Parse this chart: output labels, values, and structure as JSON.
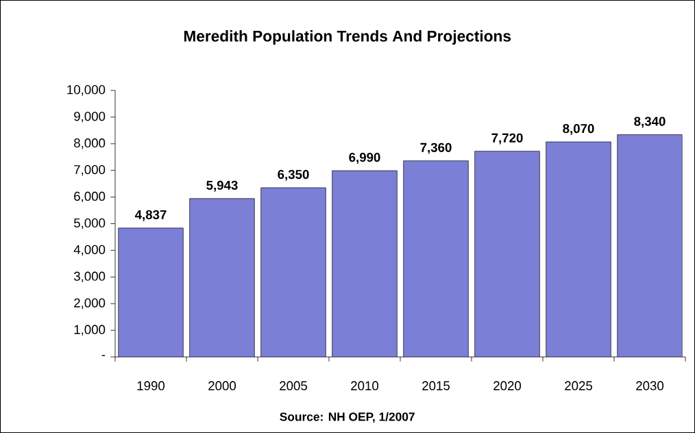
{
  "chart_data": {
    "type": "bar",
    "title": "Meredith Population Trends And Projections",
    "categories": [
      "1990",
      "2000",
      "2005",
      "2010",
      "2015",
      "2020",
      "2025",
      "2030"
    ],
    "values": [
      4837,
      5943,
      6350,
      6990,
      7360,
      7720,
      8070,
      8340
    ],
    "value_labels": [
      "4,837",
      "5,943",
      "6,350",
      "6,990",
      "7,360",
      "7,720",
      "8,070",
      "8,340"
    ],
    "color": "#7c7fd6",
    "ylim": [
      0,
      10000
    ],
    "yticks": [
      {
        "value": 0,
        "label": "-"
      },
      {
        "value": 1000,
        "label": "1,000"
      },
      {
        "value": 2000,
        "label": "2,000"
      },
      {
        "value": 3000,
        "label": "3,000"
      },
      {
        "value": 4000,
        "label": "4,000"
      },
      {
        "value": 5000,
        "label": "5,000"
      },
      {
        "value": 6000,
        "label": "6,000"
      },
      {
        "value": 7000,
        "label": "7,000"
      },
      {
        "value": 8000,
        "label": "8,000"
      },
      {
        "value": 9000,
        "label": "9,000"
      },
      {
        "value": 10000,
        "label": "10,000"
      }
    ],
    "annotations": [
      "Source: NH OEP, 1/2007"
    ],
    "grid": false
  }
}
